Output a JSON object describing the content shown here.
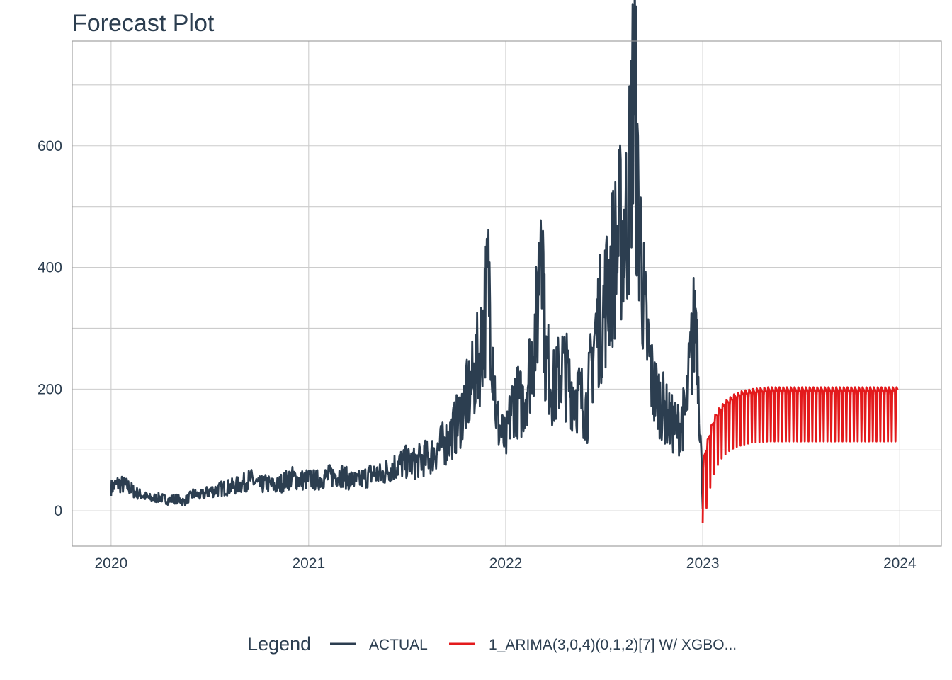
{
  "chart_data": {
    "type": "line",
    "title": "Forecast Plot",
    "xlabel": "",
    "ylabel": "",
    "x_ticks": [
      "2020",
      "2021",
      "2022",
      "2023",
      "2024"
    ],
    "y_ticks": [
      "0",
      "200",
      "400",
      "600"
    ],
    "xlim": [
      "2019-10-21",
      "2024-03-18"
    ],
    "ylim": [
      -58,
      772
    ],
    "grid": true,
    "legend_placement": "bottom",
    "legend": {
      "title": "Legend",
      "entries": [
        "ACTUAL",
        "1_ARIMA(3,0,4)(0,1,2)[7] W/ XGBO..."
      ]
    },
    "series": [
      {
        "name": "ACTUAL",
        "color": "#2c3e50",
        "x": [
          "2020-01-01",
          "2020-01-15",
          "2020-02-01",
          "2020-02-15",
          "2020-03-01",
          "2020-03-15",
          "2020-04-01",
          "2020-04-15",
          "2020-05-01",
          "2020-05-15",
          "2020-06-01",
          "2020-06-15",
          "2020-07-01",
          "2020-07-15",
          "2020-08-01",
          "2020-08-15",
          "2020-09-01",
          "2020-09-15",
          "2020-10-01",
          "2020-10-15",
          "2020-11-01",
          "2020-11-15",
          "2020-12-01",
          "2020-12-15",
          "2021-01-01",
          "2021-01-15",
          "2021-02-01",
          "2021-02-15",
          "2021-03-01",
          "2021-03-15",
          "2021-04-01",
          "2021-04-15",
          "2021-05-01",
          "2021-05-15",
          "2021-06-01",
          "2021-06-15",
          "2021-07-01",
          "2021-07-15",
          "2021-08-01",
          "2021-08-15",
          "2021-09-01",
          "2021-09-15",
          "2021-10-01",
          "2021-10-15",
          "2021-11-01",
          "2021-11-15",
          "2021-12-01",
          "2021-12-15",
          "2022-01-01",
          "2022-01-15",
          "2022-02-01",
          "2022-02-15",
          "2022-03-01",
          "2022-03-08",
          "2022-03-15",
          "2022-04-01",
          "2022-04-15",
          "2022-05-01",
          "2022-05-15",
          "2022-06-01",
          "2022-06-15",
          "2022-07-01",
          "2022-07-15",
          "2022-08-01",
          "2022-08-15",
          "2022-08-28",
          "2022-09-01",
          "2022-09-08",
          "2022-09-15",
          "2022-10-01",
          "2022-10-15",
          "2022-11-01",
          "2022-11-15",
          "2022-12-01",
          "2022-12-10",
          "2022-12-20",
          "2023-01-01"
        ],
        "values": [
          38,
          45,
          40,
          30,
          25,
          20,
          22,
          18,
          20,
          15,
          28,
          25,
          32,
          35,
          38,
          40,
          45,
          52,
          42,
          45,
          40,
          48,
          55,
          50,
          52,
          50,
          55,
          58,
          60,
          52,
          48,
          55,
          62,
          58,
          70,
          75,
          80,
          78,
          85,
          90,
          105,
          115,
          140,
          170,
          210,
          265,
          380,
          150,
          110,
          185,
          175,
          235,
          320,
          550,
          255,
          195,
          240,
          205,
          190,
          170,
          290,
          330,
          395,
          455,
          480,
          740,
          520,
          440,
          320,
          200,
          180,
          145,
          135,
          160,
          250,
          335,
          10
        ]
      },
      {
        "name": "1_ARIMA(3,0,4)(0,1,2)[7] W/ XGBO...",
        "color": "#e31a1c",
        "x": [
          "2023-01-01",
          "2023-01-08",
          "2023-01-15",
          "2023-01-22",
          "2023-02-01",
          "2023-02-15",
          "2023-03-01",
          "2023-03-15",
          "2023-04-01",
          "2023-05-01",
          "2023-06-01",
          "2023-07-01",
          "2023-08-01",
          "2023-09-01",
          "2023-10-01",
          "2023-11-01",
          "2023-12-01",
          "2023-12-28"
        ],
        "values_low": [
          -20,
          5,
          38,
          60,
          82,
          96,
          104,
          108,
          112,
          114,
          114,
          114,
          114,
          114,
          114,
          114,
          114,
          114
        ],
        "values_high": [
          80,
          110,
          135,
          155,
          170,
          183,
          192,
          197,
          200,
          203,
          203,
          203,
          203,
          203,
          203,
          203,
          203,
          203
        ]
      }
    ]
  }
}
